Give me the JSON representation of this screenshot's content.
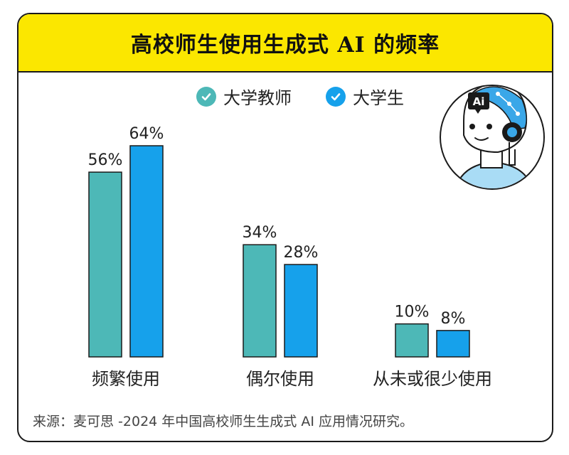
{
  "title": "高校师生使用生成式 AI 的频率",
  "legend": [
    {
      "name": "大学教师",
      "color": "#4db8b7",
      "icon": "check-circle-icon"
    },
    {
      "name": "大学生",
      "color": "#16a1eb",
      "icon": "check-circle-icon"
    }
  ],
  "illustration": {
    "icon": "ai-robot-head-icon",
    "badge_text": "Ai"
  },
  "source": "来源：麦可思 -2024 年中国高校师生生成式 AI 应用情况研究。",
  "chart_data": {
    "type": "bar",
    "title": "高校师生使用生成式 AI 的频率",
    "categories": [
      "频繁使用",
      "偶尔使用",
      "从未或很少使用"
    ],
    "series": [
      {
        "name": "大学教师",
        "values": [
          56,
          34,
          10
        ],
        "labels": [
          "56%",
          "34%",
          "10%"
        ],
        "color": "#4db8b7"
      },
      {
        "name": "大学生",
        "values": [
          64,
          28,
          8
        ],
        "labels": [
          "64%",
          "28%",
          "8%"
        ],
        "color": "#16a1eb"
      }
    ],
    "ylim": [
      0,
      64
    ],
    "grid": false,
    "legend_position": "top"
  }
}
